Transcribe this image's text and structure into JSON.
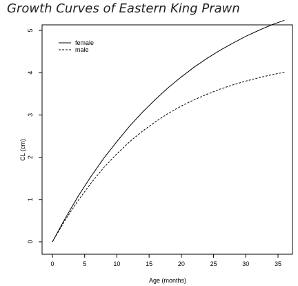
{
  "chart_data": {
    "type": "line",
    "title": "Growth Curves of Eastern King Prawn",
    "xlabel": "Age (months)",
    "ylabel": "CL (cm)",
    "xlim": [
      0,
      36
    ],
    "ylim": [
      0,
      5
    ],
    "xticks": [
      0,
      5,
      10,
      15,
      20,
      25,
      30,
      35
    ],
    "yticks": [
      0,
      1,
      2,
      3,
      4,
      5
    ],
    "grid": false,
    "legend_position": "top-left",
    "x": [
      0,
      2,
      4,
      6,
      8,
      10,
      12,
      14,
      16,
      18,
      20,
      22,
      24,
      26,
      28,
      30,
      32,
      34,
      36
    ],
    "series": [
      {
        "name": "female",
        "line_style": "solid",
        "values": [
          0,
          0.56,
          1.08,
          1.55,
          1.98,
          2.37,
          2.74,
          3.07,
          3.37,
          3.65,
          3.9,
          4.13,
          4.34,
          4.53,
          4.7,
          4.86,
          5.0,
          5.13,
          5.24
        ]
      },
      {
        "name": "male",
        "line_style": "dashed",
        "values": [
          0,
          0.52,
          0.98,
          1.39,
          1.76,
          2.08,
          2.37,
          2.62,
          2.84,
          3.04,
          3.21,
          3.36,
          3.49,
          3.61,
          3.71,
          3.8,
          3.88,
          3.95,
          4.01
        ]
      }
    ]
  }
}
